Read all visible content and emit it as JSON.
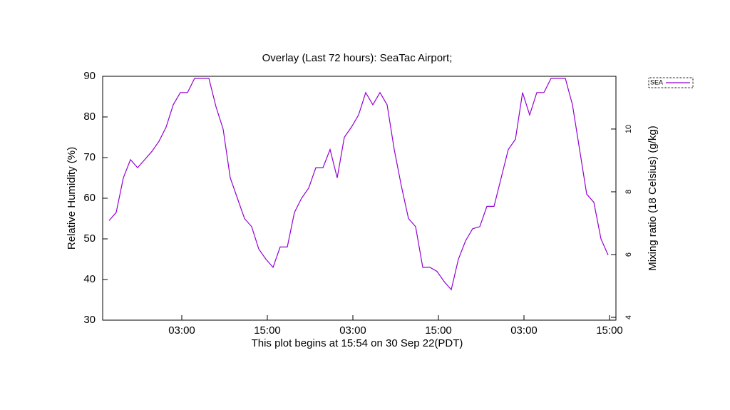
{
  "chart_data": {
    "type": "line",
    "title": "Overlay (Last 72 hours): SeaTac Airport;",
    "x_label": "This plot begins at 15:54 on 30 Sep 22(PDT)",
    "y_label": "Relative Humidity (%)",
    "y2_label": "Mixing ratio (18 Celsius) (g/kg)",
    "xlim": [
      0,
      72
    ],
    "xticks": [
      {
        "value": 11.1,
        "label": "03:00"
      },
      {
        "value": 23.1,
        "label": "15:00"
      },
      {
        "value": 35.1,
        "label": "03:00"
      },
      {
        "value": 47.1,
        "label": "15:00"
      },
      {
        "value": 59.1,
        "label": "03:00"
      },
      {
        "value": 71.1,
        "label": "15:00"
      }
    ],
    "ylim": [
      30,
      90
    ],
    "yticks": [
      30,
      40,
      50,
      60,
      70,
      80,
      90
    ],
    "y2lim": [
      3.91,
      11.68
    ],
    "y2ticks": [
      4,
      6,
      8,
      10
    ],
    "legend": "top-right",
    "x": [
      0.9,
      1.9,
      2.9,
      3.9,
      4.9,
      5.9,
      6.9,
      7.9,
      8.9,
      9.9,
      10.9,
      11.9,
      12.9,
      13.9,
      14.9,
      15.9,
      16.9,
      17.9,
      18.9,
      19.9,
      20.9,
      21.9,
      22.9,
      23.9,
      24.9,
      25.9,
      26.9,
      27.9,
      28.9,
      29.9,
      30.9,
      31.9,
      32.9,
      33.9,
      34.9,
      35.9,
      36.9,
      37.9,
      38.9,
      39.9,
      40.9,
      41.9,
      42.9,
      43.9,
      44.9,
      45.9,
      46.9,
      47.9,
      48.9,
      49.9,
      50.9,
      51.9,
      52.9,
      53.9,
      54.9,
      55.9,
      56.9,
      57.9,
      58.9,
      59.9,
      60.9,
      61.9,
      62.9,
      63.9,
      64.9,
      65.9,
      66.9,
      67.9,
      68.9,
      69.9,
      70.9
    ],
    "series": [
      {
        "name": "SEA",
        "color": "#9400d3",
        "values": [
          54.5,
          56.5,
          65,
          69.5,
          67.5,
          69.5,
          71.5,
          74,
          77.5,
          83,
          86,
          86,
          89.5,
          89.5,
          89.5,
          82.5,
          77,
          65,
          60,
          55,
          53,
          47.5,
          45,
          43,
          48,
          48,
          56.5,
          60,
          62.5,
          67.5,
          67.5,
          72,
          65,
          75,
          77.5,
          80.5,
          86,
          83,
          86,
          83,
          72,
          63,
          55,
          53,
          43,
          43,
          42,
          39.5,
          37.5,
          45,
          49.5,
          52.5,
          53,
          58,
          58,
          65,
          72,
          74.5,
          86,
          80.5,
          86,
          86,
          89.5,
          89.5,
          89.5,
          83,
          72,
          61,
          59,
          50,
          46
        ]
      }
    ]
  }
}
